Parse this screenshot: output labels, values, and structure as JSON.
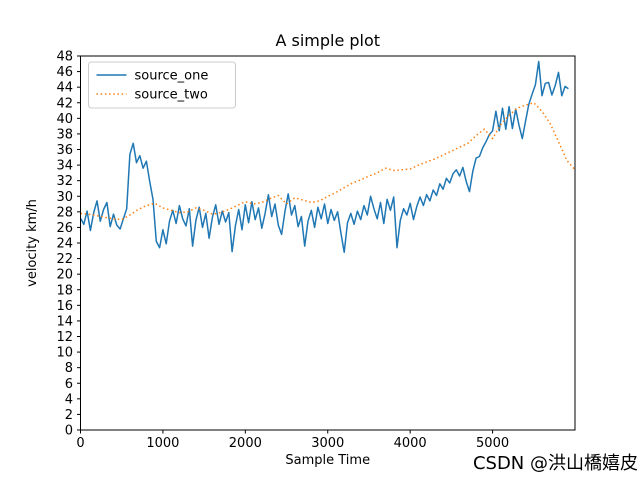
{
  "watermark": {
    "text": "CSDN @洪山橋嬉皮",
    "color": "#c4c4c4"
  },
  "chart_data": {
    "type": "line",
    "title": "A simple plot",
    "xlabel": "Sample Time",
    "ylabel": "velocity km/h",
    "xlim": [
      0,
      6000
    ],
    "ylim": [
      0,
      48
    ],
    "xticks": [
      0,
      1000,
      2000,
      3000,
      4000,
      5000
    ],
    "yticks": [
      0,
      2,
      4,
      6,
      8,
      10,
      12,
      14,
      16,
      18,
      20,
      22,
      24,
      26,
      28,
      30,
      32,
      34,
      36,
      38,
      40,
      42,
      44,
      46,
      48
    ],
    "grid": false,
    "legend_position": "upper-left",
    "axis_color": "#000000",
    "series": [
      {
        "name": "source_one",
        "color": "#1f77b4",
        "line_style": "solid",
        "x_start": 0,
        "x_step": 40,
        "values": [
          27.2,
          26.4,
          28.1,
          25.6,
          27.9,
          29.4,
          26.8,
          28.3,
          29.2,
          26.1,
          27.7,
          26.3,
          25.8,
          27.1,
          28.4,
          35.4,
          36.8,
          34.3,
          35.2,
          33.6,
          34.5,
          31.9,
          29.6,
          24.2,
          23.4,
          25.7,
          23.9,
          26.8,
          28.2,
          26.5,
          28.8,
          27.1,
          26.2,
          28.4,
          23.6,
          26.9,
          28.6,
          26.0,
          27.8,
          24.6,
          27.3,
          28.9,
          26.4,
          28.1,
          26.7,
          27.9,
          22.9,
          26.2,
          28.3,
          25.7,
          28.9,
          26.6,
          29.3,
          27.0,
          28.5,
          25.9,
          27.8,
          30.2,
          27.4,
          29.0,
          26.3,
          25.1,
          28.0,
          30.3,
          27.6,
          28.8,
          26.1,
          27.4,
          23.6,
          26.8,
          28.2,
          26.0,
          28.6,
          27.1,
          29.0,
          26.5,
          28.3,
          26.9,
          28.0,
          25.3,
          22.8,
          26.6,
          27.8,
          26.4,
          28.1,
          27.0,
          28.8,
          27.6,
          30.0,
          28.4,
          27.1,
          29.2,
          26.5,
          29.6,
          28.2,
          29.9,
          23.4,
          26.9,
          28.4,
          27.6,
          29.1,
          27.0,
          28.7,
          29.9,
          28.8,
          30.2,
          29.4,
          30.8,
          30.1,
          31.6,
          30.9,
          32.3,
          31.7,
          32.9,
          33.4,
          32.6,
          33.7,
          31.9,
          30.6,
          33.2,
          34.9,
          35.1,
          36.2,
          37.0,
          37.9,
          38.4,
          40.9,
          38.4,
          41.3,
          38.6,
          41.5,
          38.7,
          41.2,
          39.1,
          37.4,
          39.6,
          41.8,
          43.1,
          44.3,
          47.3,
          42.9,
          44.5,
          44.6,
          43.0,
          44.2,
          45.9,
          42.9,
          44.1,
          43.8
        ]
      },
      {
        "name": "source_two",
        "color": "#ff7f0e",
        "line_style": "dotted",
        "x_start": 0,
        "x_step": 100,
        "values": [
          27.8,
          27.7,
          27.5,
          27.3,
          27.1,
          27.0,
          27.6,
          28.3,
          28.8,
          29.1,
          28.5,
          28.2,
          27.9,
          28.0,
          28.5,
          28.2,
          27.7,
          27.9,
          28.3,
          28.8,
          29.3,
          29.0,
          29.2,
          29.7,
          30.1,
          29.0,
          29.8,
          29.5,
          29.2,
          29.4,
          30.0,
          30.5,
          31.1,
          31.7,
          32.1,
          32.6,
          33.0,
          33.6,
          33.3,
          33.4,
          33.5,
          34.0,
          34.4,
          34.8,
          35.3,
          35.8,
          36.3,
          36.8,
          37.8,
          38.6,
          37.4,
          39.2,
          40.4,
          41.3,
          41.7,
          42.0,
          40.9,
          39.3,
          37.0,
          34.6,
          33.4
        ]
      }
    ]
  }
}
